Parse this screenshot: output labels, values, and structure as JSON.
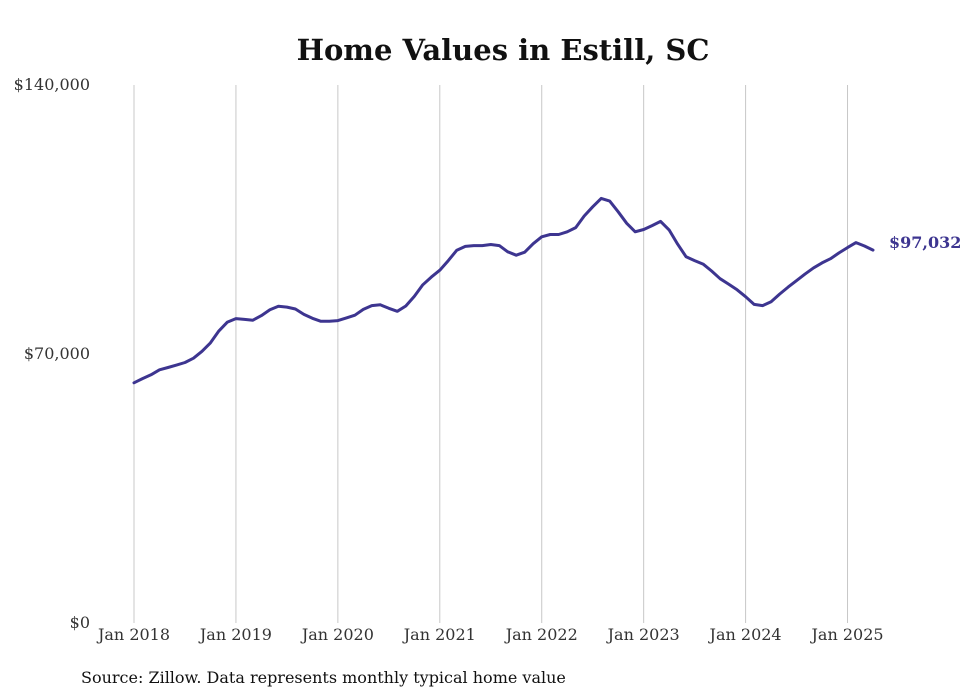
{
  "chart_data": {
    "type": "line",
    "title": "Home Values in Estill, SC",
    "source": "Source: Zillow. Data represents monthly typical home value",
    "xlabel": "",
    "ylabel": "",
    "ylim": [
      0,
      140000
    ],
    "yticks": [
      {
        "value": 0,
        "label": "$0"
      },
      {
        "value": 70000,
        "label": "$70,000"
      },
      {
        "value": 140000,
        "label": "$140,000"
      }
    ],
    "xticks": [
      {
        "value": "2018-01",
        "label": "Jan 2018"
      },
      {
        "value": "2019-01",
        "label": "Jan 2019"
      },
      {
        "value": "2020-01",
        "label": "Jan 2020"
      },
      {
        "value": "2021-01",
        "label": "Jan 2021"
      },
      {
        "value": "2022-01",
        "label": "Jan 2022"
      },
      {
        "value": "2023-01",
        "label": "Jan 2023"
      },
      {
        "value": "2024-01",
        "label": "Jan 2024"
      },
      {
        "value": "2025-01",
        "label": "Jan 2025"
      }
    ],
    "xlim": [
      "2018-01",
      "2025-04"
    ],
    "grid": {
      "vertical": true,
      "horizontal": false
    },
    "line_color": "#3d3590",
    "end_label": "$97,032",
    "series": [
      {
        "x": [
          "2018-01",
          "2018-02",
          "2018-03",
          "2018-04",
          "2018-05",
          "2018-06",
          "2018-07",
          "2018-08",
          "2018-09",
          "2018-10",
          "2018-11",
          "2018-12",
          "2019-01",
          "2019-02",
          "2019-03",
          "2019-04",
          "2019-05",
          "2019-06",
          "2019-07",
          "2019-08",
          "2019-09",
          "2019-10",
          "2019-11",
          "2019-12",
          "2020-01",
          "2020-02",
          "2020-03",
          "2020-04",
          "2020-05",
          "2020-06",
          "2020-07",
          "2020-08",
          "2020-09",
          "2020-10",
          "2020-11",
          "2020-12",
          "2021-01",
          "2021-02",
          "2021-03",
          "2021-04",
          "2021-05",
          "2021-06",
          "2021-07",
          "2021-08",
          "2021-09",
          "2021-10",
          "2021-11",
          "2021-12",
          "2022-01",
          "2022-02",
          "2022-03",
          "2022-04",
          "2022-05",
          "2022-06",
          "2022-07",
          "2022-08",
          "2022-09",
          "2022-10",
          "2022-11",
          "2022-12",
          "2023-01",
          "2023-02",
          "2023-03",
          "2023-04",
          "2023-05",
          "2023-06",
          "2023-07",
          "2023-08",
          "2023-09",
          "2023-10",
          "2023-11",
          "2023-12",
          "2024-01",
          "2024-02",
          "2024-03",
          "2024-04",
          "2024-05",
          "2024-06",
          "2024-07",
          "2024-08",
          "2024-09",
          "2024-10",
          "2024-11",
          "2024-12",
          "2025-01",
          "2025-02",
          "2025-03",
          "2025-04"
        ],
        "values": [
          62500,
          63600,
          64600,
          65900,
          66500,
          67100,
          67800,
          68900,
          70700,
          72900,
          76000,
          78300,
          79200,
          79000,
          78800,
          80000,
          81500,
          82400,
          82200,
          81700,
          80300,
          79300,
          78500,
          78500,
          78700,
          79400,
          80100,
          81600,
          82600,
          82800,
          81900,
          81100,
          82500,
          85000,
          88000,
          90000,
          91800,
          94300,
          97000,
          98000,
          98200,
          98200,
          98500,
          98200,
          96600,
          95700,
          96500,
          98700,
          100500,
          101100,
          101100,
          101800,
          102900,
          105900,
          108300,
          110500,
          109800,
          107000,
          104000,
          101800,
          102400,
          103400,
          104500,
          102300,
          98600,
          95300,
          94300,
          93400,
          91600,
          89600,
          88200,
          86700,
          84900,
          82900,
          82600,
          83600,
          85600,
          87400,
          89100,
          90800,
          92400,
          93700,
          94800,
          96300,
          97700,
          99000,
          98100,
          97032
        ]
      }
    ]
  }
}
